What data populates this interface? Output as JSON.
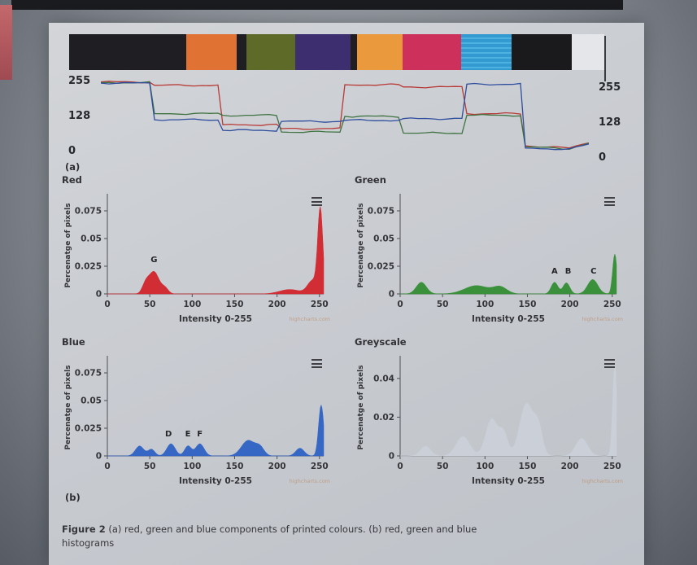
{
  "page": {
    "label_a": "(a)",
    "label_b": "(b)",
    "caption_bold": "Figure 2",
    "caption_rest": " (a) red, green and blue components of printed colours. (b) red, green and blue histograms"
  },
  "swatch_strip": {
    "patches": [
      {
        "name": "black-lead",
        "color": "#17171a",
        "w": 144
      },
      {
        "name": "orange",
        "color": "#e4702b",
        "w": 62
      },
      {
        "name": "gap",
        "color": "#17171a",
        "w": 12
      },
      {
        "name": "olive-green",
        "color": "#5a671f",
        "w": 60
      },
      {
        "name": "dark-purple",
        "color": "#37286b",
        "w": 68
      },
      {
        "name": "gap",
        "color": "#17171a",
        "w": 8
      },
      {
        "name": "amber-orange",
        "color": "#ee9a36",
        "w": 56
      },
      {
        "name": "crimson",
        "color": "#d02a56",
        "w": 72
      },
      {
        "name": "cyan-blue",
        "color": "#2b9ad2",
        "w": 62,
        "striped": true
      },
      {
        "name": "black",
        "color": "#121214",
        "w": 74
      },
      {
        "name": "white-tail",
        "color": "#e9eaec",
        "w": 40
      }
    ]
  },
  "chart_data": [
    {
      "type": "line",
      "name": "rgb-components-trace",
      "ylim": [
        0,
        255
      ],
      "yticks": [
        255,
        128,
        0
      ],
      "series": [
        {
          "name": "red",
          "color": "#b8332e",
          "points": [
            [
              0,
              250
            ],
            [
              10,
              250
            ],
            [
              11,
              238
            ],
            [
              24,
              238
            ],
            [
              25,
              96
            ],
            [
              36,
              96
            ],
            [
              37,
              82
            ],
            [
              49,
              82
            ],
            [
              50,
              240
            ],
            [
              61,
              240
            ],
            [
              62,
              232
            ],
            [
              74,
              232
            ],
            [
              75,
              136
            ],
            [
              86,
              136
            ],
            [
              87,
              20
            ],
            [
              96,
              12
            ],
            [
              100,
              34
            ]
          ]
        },
        {
          "name": "green",
          "color": "#39703a",
          "points": [
            [
              0,
              248
            ],
            [
              10,
              248
            ],
            [
              11,
              136
            ],
            [
              24,
              136
            ],
            [
              25,
              130
            ],
            [
              36,
              130
            ],
            [
              37,
              70
            ],
            [
              49,
              70
            ],
            [
              50,
              126
            ],
            [
              61,
              126
            ],
            [
              62,
              66
            ],
            [
              74,
              66
            ],
            [
              75,
              130
            ],
            [
              86,
              130
            ],
            [
              87,
              16
            ],
            [
              96,
              10
            ],
            [
              100,
              30
            ]
          ]
        },
        {
          "name": "blue",
          "color": "#27489c",
          "points": [
            [
              0,
              246
            ],
            [
              10,
              246
            ],
            [
              11,
              114
            ],
            [
              24,
              114
            ],
            [
              25,
              76
            ],
            [
              36,
              76
            ],
            [
              37,
              108
            ],
            [
              49,
              108
            ],
            [
              50,
              112
            ],
            [
              61,
              112
            ],
            [
              62,
              118
            ],
            [
              74,
              118
            ],
            [
              75,
              242
            ],
            [
              86,
              242
            ],
            [
              87,
              12
            ],
            [
              96,
              8
            ],
            [
              100,
              26
            ]
          ]
        }
      ]
    },
    {
      "type": "histogram",
      "title": "Red",
      "color": "#d3262c",
      "ylabel": "Percenatge of pixels",
      "xlabel": "Intensity 0-255",
      "ymax": 0.0875,
      "yticks": [
        0.075,
        0.05,
        0.025,
        0
      ],
      "xmax": 255,
      "xticks": [
        0,
        50,
        100,
        150,
        200,
        250
      ],
      "watermark": "highcharts.com",
      "peaks": [
        {
          "c": 45,
          "w": 4,
          "h": 0.008
        },
        {
          "c": 55,
          "w": 6,
          "h": 0.02
        },
        {
          "c": 68,
          "w": 4,
          "h": 0.005
        },
        {
          "c": 215,
          "w": 12,
          "h": 0.004
        },
        {
          "c": 242,
          "w": 6,
          "h": 0.012
        },
        {
          "c": 251,
          "w": 3,
          "h": 0.075
        }
      ],
      "annotations": [
        {
          "text": "G",
          "x": 55,
          "y": 0.0285
        }
      ]
    },
    {
      "type": "histogram",
      "title": "Green",
      "color": "#338f33",
      "ylabel": "Percenatge of pixels",
      "xlabel": "Intensity 0-255",
      "ymax": 0.0875,
      "yticks": [
        0.075,
        0.05,
        0.025,
        0
      ],
      "xmax": 255,
      "xticks": [
        0,
        50,
        100,
        150,
        200,
        250
      ],
      "watermark": "highcharts.com",
      "peaks": [
        {
          "c": 25,
          "w": 6,
          "h": 0.0105
        },
        {
          "c": 90,
          "w": 14,
          "h": 0.0075
        },
        {
          "c": 118,
          "w": 8,
          "h": 0.006
        },
        {
          "c": 182,
          "w": 4,
          "h": 0.0105
        },
        {
          "c": 196,
          "w": 4,
          "h": 0.01
        },
        {
          "c": 227,
          "w": 6,
          "h": 0.013
        },
        {
          "c": 253,
          "w": 2.5,
          "h": 0.036
        }
      ],
      "annotations": [
        {
          "text": "A",
          "x": 182,
          "y": 0.0185
        },
        {
          "text": "B",
          "x": 198,
          "y": 0.0185
        },
        {
          "text": "C",
          "x": 228,
          "y": 0.0185
        }
      ]
    },
    {
      "type": "histogram",
      "title": "Blue",
      "color": "#2f63c5",
      "ylabel": "Percenatge of pixels",
      "xlabel": "Intensity 0-255",
      "ymax": 0.0875,
      "yticks": [
        0.075,
        0.05,
        0.025,
        0
      ],
      "xmax": 255,
      "xticks": [
        0,
        50,
        100,
        150,
        200,
        250
      ],
      "watermark": "highcharts.com",
      "peaks": [
        {
          "c": 38,
          "w": 5,
          "h": 0.009
        },
        {
          "c": 52,
          "w": 4,
          "h": 0.006
        },
        {
          "c": 75,
          "w": 5,
          "h": 0.011
        },
        {
          "c": 95,
          "w": 4,
          "h": 0.009
        },
        {
          "c": 109,
          "w": 5,
          "h": 0.011
        },
        {
          "c": 166,
          "w": 8,
          "h": 0.014
        },
        {
          "c": 180,
          "w": 5,
          "h": 0.007
        },
        {
          "c": 227,
          "w": 5,
          "h": 0.007
        },
        {
          "c": 252,
          "w": 3,
          "h": 0.046
        }
      ],
      "annotations": [
        {
          "text": "D",
          "x": 72,
          "y": 0.0175
        },
        {
          "text": "E",
          "x": 95,
          "y": 0.0175
        },
        {
          "text": "F",
          "x": 109,
          "y": 0.0175
        }
      ]
    },
    {
      "type": "histogram",
      "title": "Greyscale",
      "color": "#ccd2da",
      "ylabel": "Percenatge of pixels",
      "xlabel": "Intensity 0-255",
      "ymax": 0.05,
      "yticks": [
        0.04,
        0.02,
        0
      ],
      "xmax": 255,
      "xticks": [
        0,
        50,
        100,
        150,
        200,
        250
      ],
      "watermark": "highcharts.com",
      "peaks": [
        {
          "c": 30,
          "w": 6,
          "h": 0.005
        },
        {
          "c": 74,
          "w": 8,
          "h": 0.01
        },
        {
          "c": 108,
          "w": 7,
          "h": 0.019
        },
        {
          "c": 122,
          "w": 5,
          "h": 0.011
        },
        {
          "c": 149,
          "w": 8,
          "h": 0.027
        },
        {
          "c": 163,
          "w": 5,
          "h": 0.013
        },
        {
          "c": 214,
          "w": 7,
          "h": 0.009
        },
        {
          "c": 253,
          "w": 2.5,
          "h": 0.047
        }
      ],
      "annotations": []
    }
  ]
}
